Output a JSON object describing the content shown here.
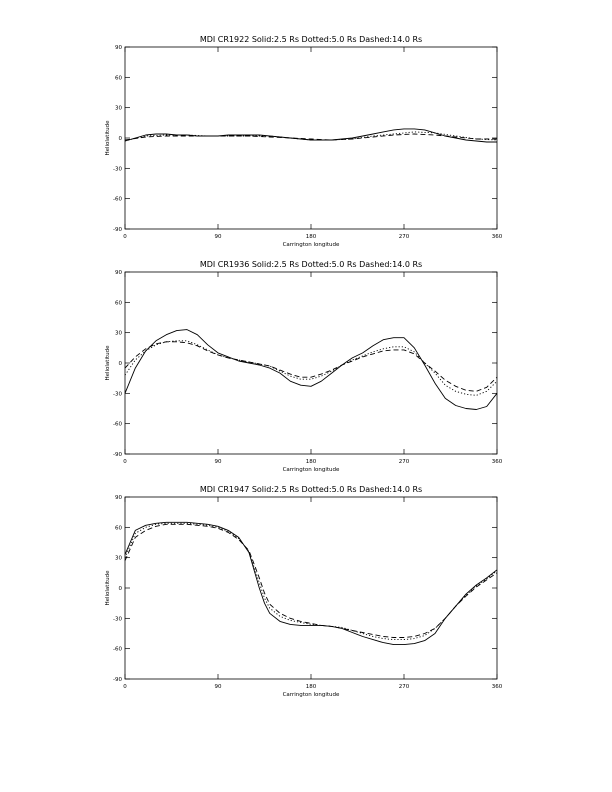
{
  "chart_data": [
    {
      "type": "line",
      "title": "MDI    CR1922    Solid:2.5 Rs    Dotted:5.0 Rs    Dashed:14.0 Rs",
      "xlabel": "Carrington longitude",
      "ylabel": "Heliolatitude",
      "xlim": [
        0,
        360
      ],
      "ylim": [
        -90,
        90
      ],
      "xticks": [
        0,
        90,
        180,
        270,
        360
      ],
      "yticks": [
        -90,
        -60,
        -30,
        0,
        30,
        60,
        90
      ],
      "series": [
        {
          "style": "solid",
          "x": [
            0,
            10,
            20,
            30,
            40,
            50,
            60,
            70,
            80,
            90,
            100,
            110,
            120,
            130,
            140,
            150,
            160,
            170,
            180,
            190,
            200,
            210,
            220,
            230,
            240,
            250,
            260,
            270,
            280,
            290,
            300,
            310,
            320,
            330,
            340,
            350,
            360
          ],
          "y": [
            -3,
            0,
            3,
            4,
            4,
            3,
            3,
            2,
            2,
            2,
            3,
            3,
            3,
            3,
            2,
            1,
            0,
            -1,
            -2,
            -2,
            -2,
            -1,
            0,
            2,
            4,
            6,
            8,
            9,
            9,
            8,
            5,
            2,
            0,
            -2,
            -3,
            -4,
            -4
          ]
        },
        {
          "style": "dotted",
          "x": [
            0,
            20,
            40,
            60,
            80,
            100,
            120,
            140,
            160,
            180,
            200,
            220,
            240,
            260,
            280,
            300,
            320,
            340,
            360
          ],
          "y": [
            -3,
            2,
            3,
            3,
            2,
            2,
            2,
            2,
            0,
            -2,
            -2,
            -1,
            2,
            4,
            6,
            5,
            2,
            -1,
            -2
          ]
        },
        {
          "style": "dashed",
          "x": [
            0,
            20,
            40,
            60,
            80,
            100,
            120,
            140,
            160,
            180,
            200,
            220,
            240,
            260,
            280,
            300,
            320,
            340,
            360
          ],
          "y": [
            -2,
            1,
            2,
            2,
            2,
            2,
            2,
            1,
            0,
            -1,
            -2,
            -1,
            1,
            3,
            4,
            3,
            1,
            -1,
            -1
          ]
        }
      ]
    },
    {
      "type": "line",
      "title": "MDI    CR1936    Solid:2.5 Rs    Dotted:5.0 Rs    Dashed:14.0 Rs",
      "xlabel": "Carrington longitude",
      "ylabel": "Heliolatitude",
      "xlim": [
        0,
        360
      ],
      "ylim": [
        -90,
        90
      ],
      "xticks": [
        0,
        90,
        180,
        270,
        360
      ],
      "yticks": [
        -90,
        -60,
        -30,
        0,
        30,
        60,
        90
      ],
      "series": [
        {
          "style": "solid",
          "x": [
            0,
            10,
            20,
            30,
            40,
            50,
            60,
            70,
            80,
            90,
            100,
            110,
            120,
            130,
            140,
            150,
            160,
            170,
            180,
            190,
            200,
            210,
            220,
            230,
            240,
            250,
            260,
            270,
            280,
            290,
            300,
            310,
            320,
            330,
            340,
            350,
            360
          ],
          "y": [
            -30,
            -5,
            12,
            22,
            28,
            32,
            33,
            28,
            18,
            10,
            6,
            2,
            0,
            -2,
            -5,
            -10,
            -18,
            -22,
            -23,
            -18,
            -10,
            -2,
            5,
            10,
            17,
            23,
            25,
            25,
            15,
            -2,
            -20,
            -35,
            -42,
            -45,
            -46,
            -43,
            -30
          ]
        },
        {
          "style": "dotted",
          "x": [
            0,
            10,
            20,
            30,
            40,
            50,
            60,
            70,
            80,
            90,
            100,
            110,
            120,
            130,
            140,
            150,
            160,
            170,
            180,
            190,
            200,
            210,
            220,
            230,
            240,
            250,
            260,
            270,
            280,
            290,
            300,
            310,
            320,
            330,
            340,
            350,
            360
          ],
          "y": [
            -12,
            3,
            12,
            18,
            21,
            22,
            22,
            18,
            13,
            8,
            5,
            3,
            1,
            -1,
            -3,
            -8,
            -13,
            -16,
            -16,
            -13,
            -8,
            -2,
            3,
            7,
            11,
            14,
            16,
            16,
            11,
            0,
            -10,
            -22,
            -28,
            -31,
            -32,
            -28,
            -18
          ]
        },
        {
          "style": "dashed",
          "x": [
            0,
            10,
            20,
            30,
            40,
            50,
            60,
            70,
            80,
            90,
            100,
            110,
            120,
            130,
            140,
            150,
            160,
            170,
            180,
            190,
            200,
            210,
            220,
            230,
            240,
            250,
            260,
            270,
            280,
            290,
            300,
            310,
            320,
            330,
            340,
            350,
            360
          ],
          "y": [
            -5,
            6,
            14,
            19,
            21,
            21,
            20,
            17,
            12,
            8,
            5,
            3,
            1,
            -1,
            -3,
            -7,
            -11,
            -14,
            -14,
            -11,
            -7,
            -2,
            2,
            6,
            9,
            12,
            13,
            13,
            9,
            0,
            -8,
            -17,
            -23,
            -27,
            -28,
            -24,
            -14
          ]
        }
      ]
    },
    {
      "type": "line",
      "title": "MDI    CR1947    Solid:2.5 Rs    Dotted:5.0 Rs    Dashed:14.0 Rs",
      "xlabel": "Carrington longitude",
      "ylabel": "Heliolatitude",
      "xlim": [
        0,
        360
      ],
      "ylim": [
        -90,
        90
      ],
      "xticks": [
        0,
        90,
        180,
        270,
        360
      ],
      "yticks": [
        -90,
        -60,
        -30,
        0,
        30,
        60,
        90
      ],
      "series": [
        {
          "style": "solid",
          "x": [
            0,
            10,
            20,
            30,
            40,
            50,
            60,
            70,
            80,
            90,
            100,
            110,
            120,
            130,
            135,
            140,
            150,
            160,
            170,
            180,
            190,
            200,
            210,
            220,
            230,
            240,
            250,
            260,
            270,
            280,
            290,
            300,
            310,
            320,
            330,
            340,
            350,
            360
          ],
          "y": [
            33,
            57,
            62,
            64,
            65,
            65,
            65,
            64,
            63,
            61,
            57,
            50,
            35,
            0,
            -15,
            -25,
            -33,
            -36,
            -37,
            -37,
            -37,
            -38,
            -40,
            -44,
            -48,
            -51,
            -54,
            -56,
            -56,
            -55,
            -52,
            -45,
            -30,
            -18,
            -6,
            3,
            10,
            18
          ]
        },
        {
          "style": "dotted",
          "x": [
            0,
            10,
            20,
            30,
            40,
            50,
            60,
            70,
            80,
            90,
            100,
            110,
            120,
            130,
            135,
            140,
            150,
            160,
            170,
            180,
            190,
            200,
            210,
            220,
            230,
            240,
            250,
            260,
            270,
            280,
            290,
            300,
            310,
            320,
            330,
            340,
            350,
            360
          ],
          "y": [
            30,
            54,
            60,
            63,
            64,
            64,
            64,
            63,
            62,
            60,
            56,
            49,
            36,
            5,
            -10,
            -20,
            -28,
            -32,
            -34,
            -36,
            -37,
            -38,
            -39,
            -42,
            -45,
            -48,
            -50,
            -51,
            -51,
            -50,
            -47,
            -40,
            -30,
            -18,
            -7,
            2,
            9,
            17
          ]
        },
        {
          "style": "dashed",
          "x": [
            0,
            10,
            20,
            30,
            40,
            50,
            60,
            70,
            80,
            90,
            100,
            110,
            120,
            130,
            135,
            140,
            150,
            160,
            170,
            180,
            190,
            200,
            210,
            220,
            230,
            240,
            250,
            260,
            270,
            280,
            290,
            300,
            310,
            320,
            330,
            340,
            350,
            360
          ],
          "y": [
            27,
            50,
            57,
            61,
            63,
            63,
            63,
            62,
            61,
            59,
            55,
            48,
            37,
            10,
            -5,
            -16,
            -25,
            -30,
            -33,
            -35,
            -37,
            -38,
            -40,
            -42,
            -44,
            -46,
            -48,
            -49,
            -49,
            -48,
            -45,
            -40,
            -30,
            -18,
            -8,
            1,
            8,
            15
          ]
        }
      ]
    }
  ]
}
